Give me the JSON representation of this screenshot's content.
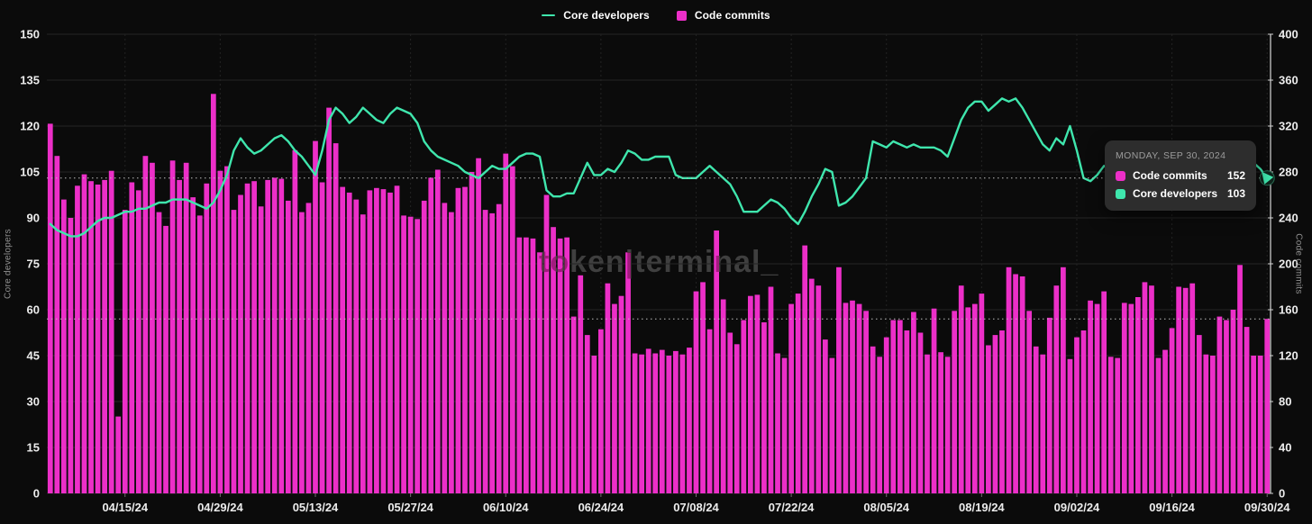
{
  "page": {
    "background": "#0b0b0b"
  },
  "legend": [
    {
      "label": "Core developers",
      "type": "line",
      "color": "#3fe6ad"
    },
    {
      "label": "Code commits",
      "type": "square",
      "color": "#ec2fc8"
    }
  ],
  "watermark": "token|terminal_",
  "tooltip": {
    "title": "MONDAY, SEP 30, 2024",
    "rows": [
      {
        "label": "Code commits",
        "value": "152",
        "color": "#ec2fc8"
      },
      {
        "label": "Core developers",
        "value": "103",
        "color": "#3fe6ad"
      }
    ]
  },
  "chart_data": {
    "type": "bar+line",
    "start_date": "04/04/24",
    "end_date": "09/30/24",
    "grid": true,
    "legend_position": "top-center",
    "left_axis": {
      "label": "Core developers",
      "range": [
        0,
        150
      ],
      "tick_step": 15,
      "ticks": [
        "0",
        "15",
        "30",
        "45",
        "60",
        "75",
        "90",
        "105",
        "120",
        "135",
        "150"
      ]
    },
    "right_axis": {
      "label": "Code commits",
      "range": [
        0,
        400
      ],
      "tick_step": 40,
      "ticks": [
        "0",
        "40",
        "80",
        "120",
        "160",
        "200",
        "240",
        "280",
        "320",
        "360",
        "400"
      ]
    },
    "x_tick_labels": [
      "04/15/24",
      "04/29/24",
      "05/13/24",
      "05/27/24",
      "06/10/24",
      "06/24/24",
      "07/08/24",
      "07/22/24",
      "08/05/24",
      "08/19/24",
      "09/02/24",
      "09/16/24",
      "09/30/24"
    ],
    "x_tick_day_indices": [
      11,
      25,
      39,
      53,
      67,
      81,
      95,
      109,
      123,
      137,
      151,
      165,
      179
    ],
    "highlight": {
      "date": "MONDAY, SEP 30, 2024",
      "code_commits": 152,
      "core_developers": 103
    },
    "series": [
      {
        "name": "Code commits",
        "type": "bar",
        "axis": "right",
        "color": "#ec2fc8",
        "values": [
          322,
          294,
          256,
          240,
          268,
          278,
          272,
          269,
          273,
          281,
          67,
          247,
          271,
          264,
          294,
          288,
          245,
          233,
          290,
          273,
          288,
          258,
          242,
          270,
          348,
          281,
          285,
          247,
          260,
          270,
          272,
          250,
          273,
          275,
          274,
          255,
          299,
          245,
          253,
          307,
          271,
          336,
          305,
          267,
          262,
          256,
          243,
          264,
          266,
          265,
          262,
          268,
          242,
          241,
          239,
          255,
          275,
          282,
          253,
          245,
          266,
          267,
          280,
          292,
          247,
          244,
          252,
          296,
          285,
          223,
          223,
          222,
          210,
          260,
          232,
          222,
          223,
          154,
          190,
          138,
          120,
          143,
          183,
          165,
          172,
          210,
          122,
          121,
          126,
          122,
          125,
          120,
          124,
          121,
          127,
          176,
          184,
          143,
          229,
          169,
          140,
          130,
          151,
          172,
          173,
          149,
          180,
          122,
          118,
          165,
          174,
          216,
          187,
          181,
          134,
          118,
          197,
          166,
          168,
          165,
          159,
          128,
          119,
          136,
          151,
          151,
          142,
          158,
          140,
          121,
          161,
          123,
          119,
          159,
          181,
          162,
          165,
          174,
          129,
          138,
          142,
          197,
          191,
          189,
          159,
          128,
          121,
          153,
          181,
          197,
          117,
          136,
          142,
          168,
          165,
          176,
          119,
          118,
          166,
          165,
          171,
          184,
          181,
          118,
          125,
          144,
          180,
          179,
          183,
          138,
          121,
          120,
          154,
          151,
          160,
          199,
          145,
          120,
          120,
          152
        ]
      },
      {
        "name": "Core developers",
        "type": "line",
        "axis": "left",
        "color": "#3fe6ad",
        "values": [
          88,
          86,
          85,
          84,
          84,
          85,
          87,
          89,
          90,
          90,
          91,
          92,
          92,
          93,
          93,
          94,
          95,
          95,
          96,
          96,
          96,
          95,
          94,
          93,
          95,
          99,
          104,
          112,
          116,
          113,
          111,
          112,
          114,
          116,
          117,
          115,
          112,
          110,
          107,
          104,
          112,
          122,
          126,
          124,
          121,
          123,
          126,
          124,
          122,
          121,
          124,
          126,
          125,
          124,
          121,
          115,
          112,
          110,
          109,
          108,
          107,
          105,
          104,
          103,
          105,
          107,
          106,
          106,
          108,
          110,
          111,
          111,
          110,
          99,
          97,
          97,
          98,
          98,
          103,
          108,
          104,
          104,
          106,
          105,
          108,
          112,
          111,
          109,
          109,
          110,
          110,
          110,
          104,
          103,
          103,
          103,
          105,
          107,
          105,
          103,
          101,
          97,
          92,
          92,
          92,
          94,
          96,
          95,
          93,
          90,
          88,
          92,
          97,
          101,
          106,
          105,
          94,
          95,
          97,
          100,
          103,
          115,
          114,
          113,
          115,
          114,
          113,
          114,
          113,
          113,
          113,
          112,
          110,
          116,
          122,
          126,
          128,
          128,
          125,
          127,
          129,
          128,
          129,
          126,
          122,
          118,
          114,
          112,
          116,
          114,
          120,
          112,
          103,
          102,
          104,
          107,
          106,
          104,
          105,
          107,
          108,
          110,
          109,
          107,
          104,
          102,
          104,
          106,
          105,
          103,
          100,
          99,
          101,
          103,
          105,
          108,
          110,
          108,
          106,
          103
        ]
      }
    ]
  }
}
